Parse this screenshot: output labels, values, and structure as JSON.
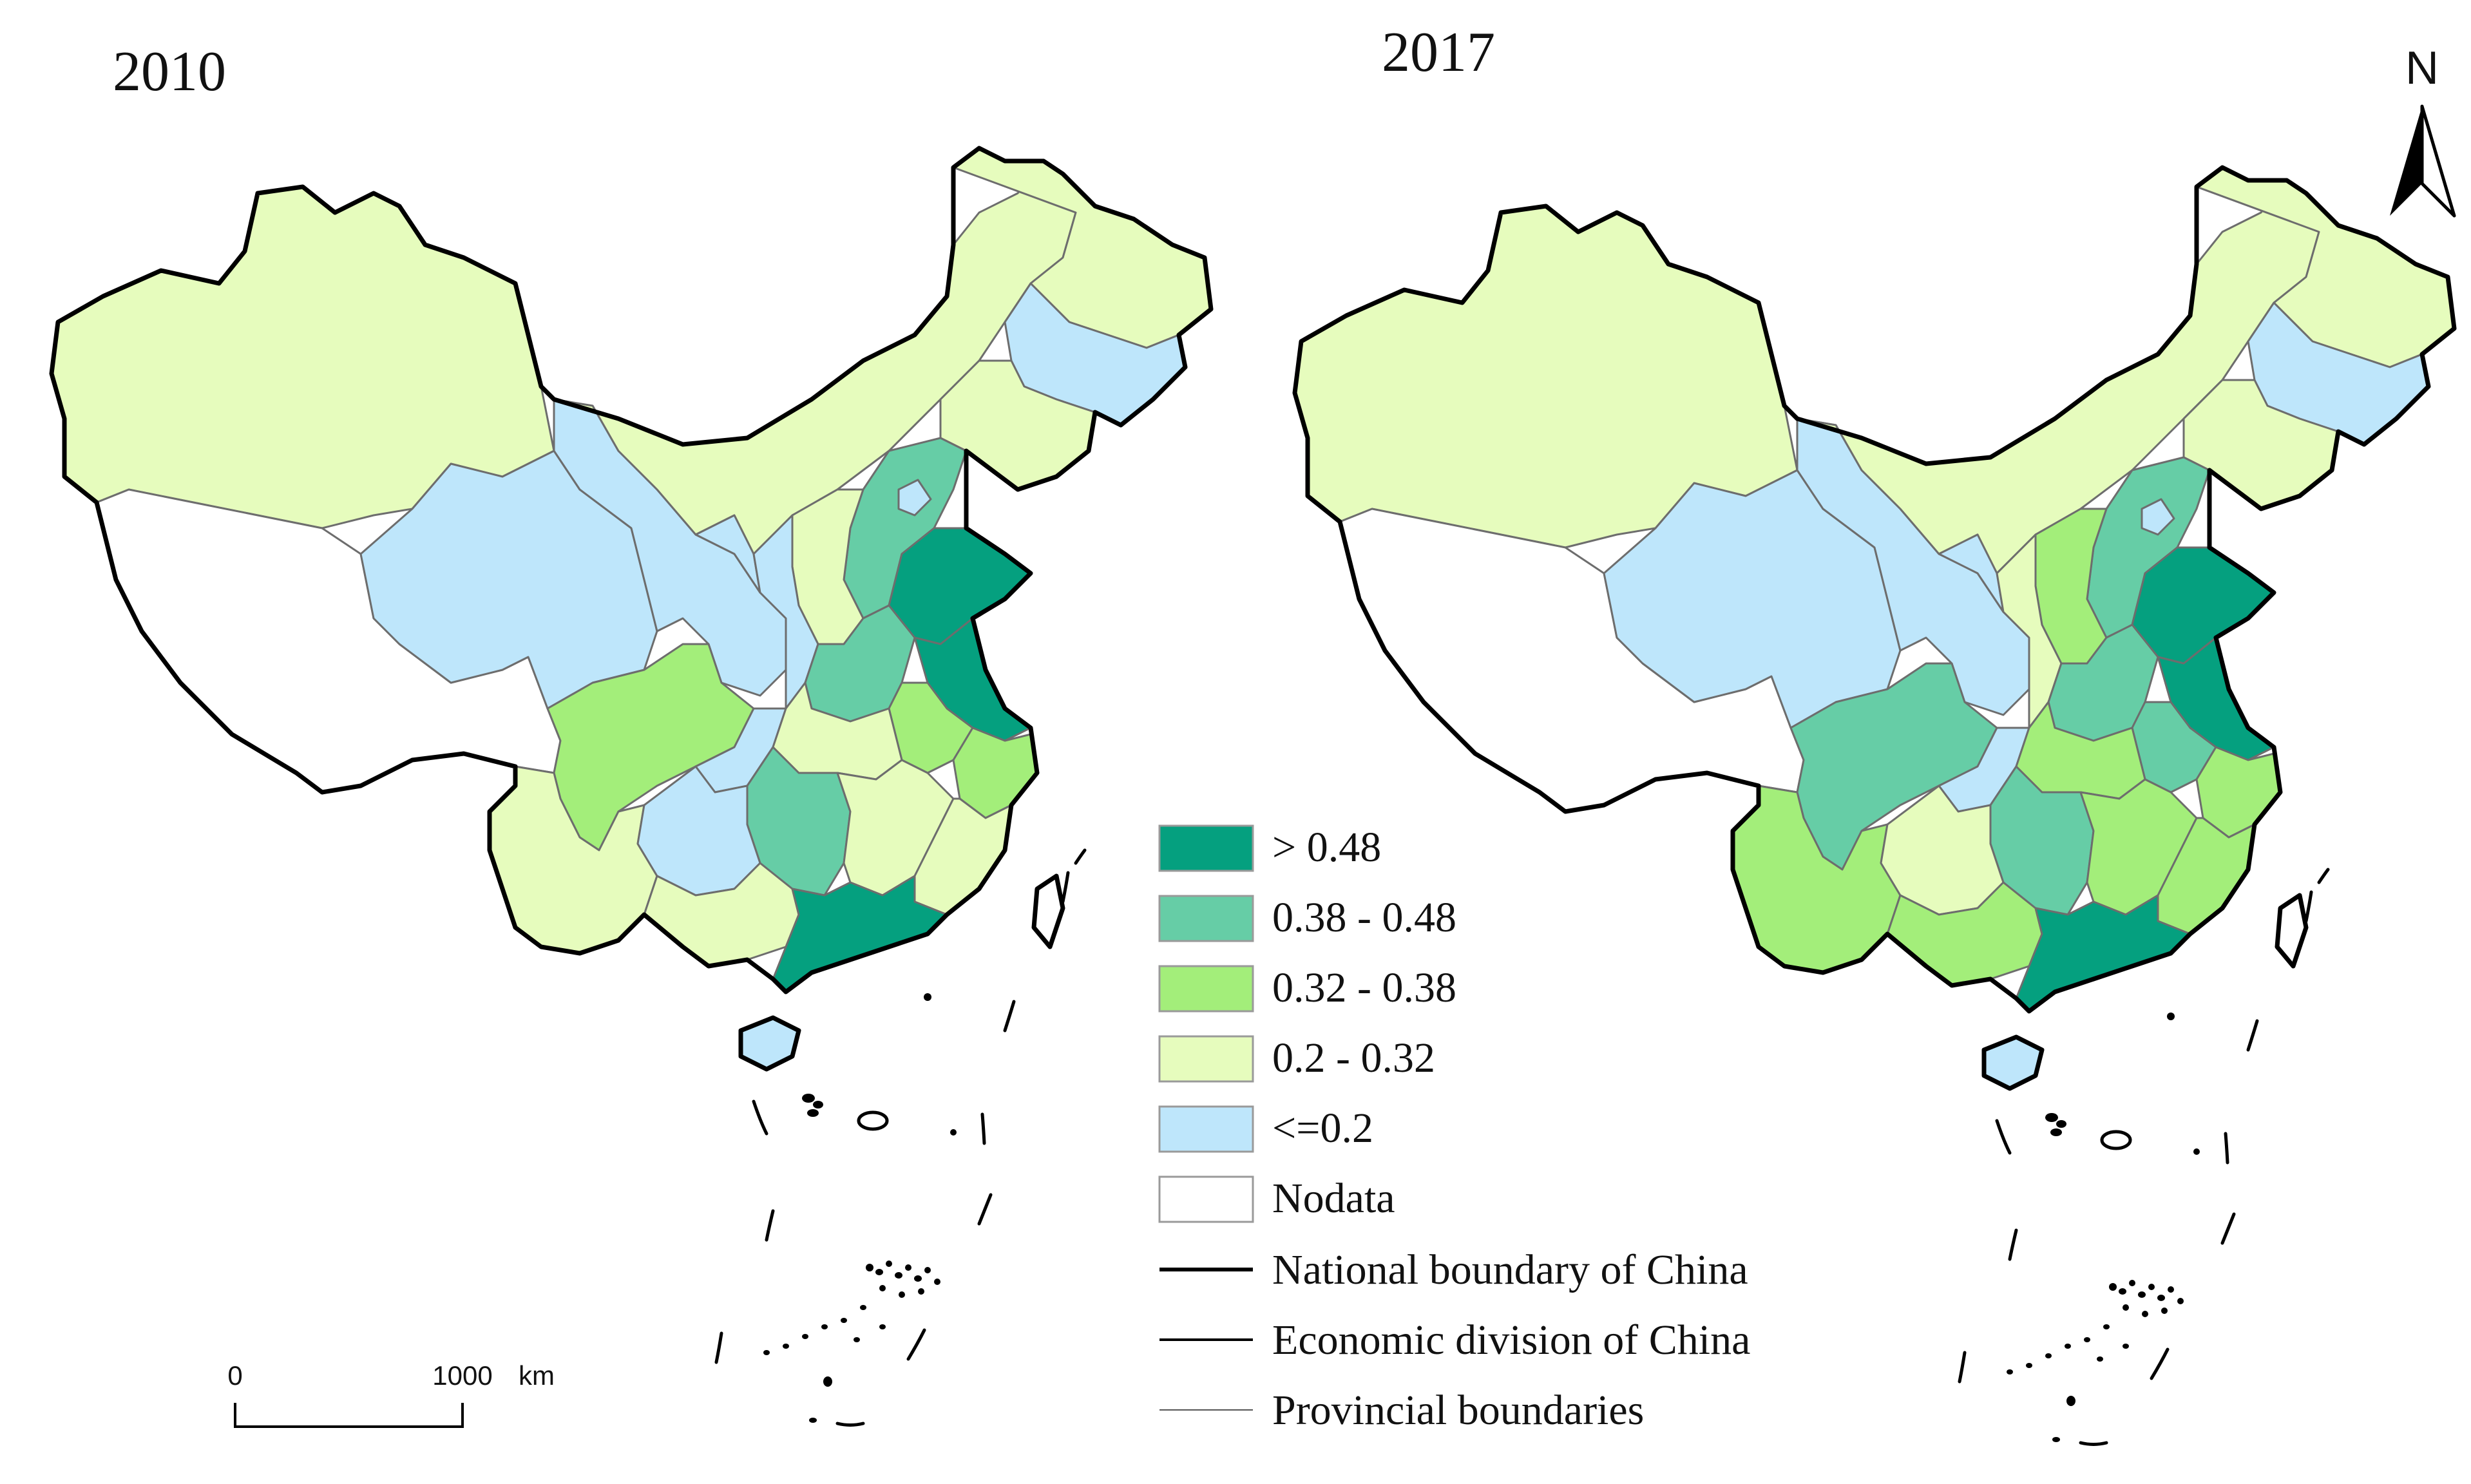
{
  "maps": [
    {
      "title": "2010",
      "regions": {
        "xinjiang": "0.2 - 0.32",
        "tibet": "Nodata",
        "qinghai": "<=0.2",
        "gansu": "<=0.2",
        "inner_mongolia": "0.2 - 0.32",
        "heilongjiang": "0.2 - 0.32",
        "jilin": "<=0.2",
        "liaoning": "0.2 - 0.32",
        "hebei": "0.38 - 0.48",
        "beijing": "<=0.2",
        "shandong": "> 0.48",
        "jiangsu": "> 0.48",
        "shanxi": "0.2 - 0.32",
        "ningxia": "<=0.2",
        "shaanxi": "<=0.2",
        "henan": "0.38 - 0.48",
        "anhui": "0.32 - 0.38",
        "zhejiang": "0.32 - 0.38",
        "sichuan": "0.32 - 0.38",
        "chongqing": "<=0.2",
        "hubei": "0.2 - 0.32",
        "hunan": "0.38 - 0.48",
        "jiangxi": "0.2 - 0.32",
        "fujian": "0.2 - 0.32",
        "yunnan": "0.2 - 0.32",
        "guizhou": "<=0.2",
        "guangxi": "0.2 - 0.32",
        "guangdong": "> 0.48",
        "hainan": "<=0.2",
        "taiwan": "Nodata"
      }
    },
    {
      "title": "2017",
      "regions": {
        "xinjiang": "0.2 - 0.32",
        "tibet": "Nodata",
        "qinghai": "<=0.2",
        "gansu": "<=0.2",
        "inner_mongolia": "0.2 - 0.32",
        "heilongjiang": "0.2 - 0.32",
        "jilin": "<=0.2",
        "liaoning": "0.2 - 0.32",
        "hebei": "0.38 - 0.48",
        "beijing": "<=0.2",
        "shandong": "> 0.48",
        "jiangsu": "> 0.48",
        "shanxi": "0.32 - 0.38",
        "ningxia": "<=0.2",
        "shaanxi": "0.2 - 0.32",
        "henan": "0.38 - 0.48",
        "anhui": "0.38 - 0.48",
        "zhejiang": "0.32 - 0.38",
        "sichuan": "0.38 - 0.48",
        "chongqing": "<=0.2",
        "hubei": "0.32 - 0.38",
        "hunan": "0.38 - 0.48",
        "jiangxi": "0.32 - 0.38",
        "fujian": "0.32 - 0.38",
        "yunnan": "0.32 - 0.38",
        "guizhou": "0.2 - 0.32",
        "guangxi": "0.32 - 0.38",
        "guangdong": "> 0.48",
        "hainan": "<=0.2",
        "taiwan": "Nodata"
      }
    }
  ],
  "legend": {
    "classes": [
      {
        "label": "> 0.48",
        "color": "#05a07f"
      },
      {
        "label": "0.38 - 0.48",
        "color": "#66cda6"
      },
      {
        "label": "0.32 - 0.38",
        "color": "#a3ee7a"
      },
      {
        "label": "0.2 - 0.32",
        "color": "#e6fcbd"
      },
      {
        "label": "<=0.2",
        "color": "#bee6fb"
      },
      {
        "label": "Nodata",
        "color": "#ffffff"
      }
    ],
    "lines": [
      {
        "label": "National boundary of China"
      },
      {
        "label": "Economic division of China"
      },
      {
        "label": "Provincial boundaries"
      }
    ]
  },
  "scale_bar": {
    "start": "0",
    "end": "1000",
    "unit": "km"
  },
  "north_arrow": {
    "label": "N"
  }
}
